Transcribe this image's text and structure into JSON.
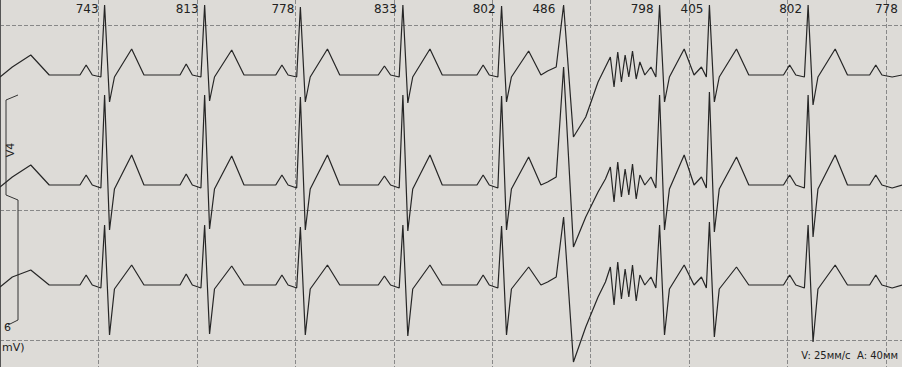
{
  "chart_data": {
    "type": "line",
    "lead": "V4",
    "lead_number": "6",
    "unit": "mV)",
    "footer": "V: 25мм/с  A: 40мм",
    "rr_labels": [
      {
        "x": 850,
        "value": 743
      },
      {
        "x": 1663,
        "value": 813
      },
      {
        "x": 2441,
        "value": 778
      },
      {
        "x": 3274,
        "value": 833
      },
      {
        "x": 4076,
        "value": 802
      },
      {
        "x": 4562,
        "value": 486
      },
      {
        "x": 5360,
        "value": 798
      },
      {
        "x": 5765,
        "value": 405
      },
      {
        "x": 6567,
        "value": 802
      },
      {
        "x": 7345,
        "value": 778
      }
    ],
    "x": [
      0,
      100,
      250,
      400,
      650,
      700,
      750,
      820,
      850,
      890,
      930,
      1070,
      1170,
      1463,
      1513,
      1563,
      1633,
      1663,
      1703,
      1743,
      1883,
      1983,
      2241,
      2291,
      2341,
      2411,
      2441,
      2481,
      2521,
      2661,
      2761,
      3074,
      3124,
      3174,
      3244,
      3274,
      3314,
      3354,
      3494,
      3594,
      3876,
      3926,
      3976,
      4046,
      4076,
      4116,
      4156,
      4296,
      4396,
      4450,
      4520,
      4580,
      4660,
      4760,
      4860,
      4920,
      4960,
      4990,
      5020,
      5050,
      5080,
      5110,
      5140,
      5170,
      5200,
      5240,
      5290,
      5330,
      5360,
      5400,
      5440,
      5560,
      5640,
      5700,
      5740,
      5765,
      5805,
      5845,
      5985,
      6085,
      6367,
      6417,
      6467,
      6537,
      6567,
      6607,
      6647,
      6787,
      6887,
      7067,
      7117,
      7167,
      7250,
      7330
    ],
    "series": [
      {
        "color": "#262626",
        "values": [
          290,
          300,
          312,
          292,
          292,
          302,
          292,
          290,
          362,
          265,
          290,
          318,
          292,
          292,
          303,
          292,
          290,
          362,
          266,
          290,
          317,
          292,
          292,
          302,
          292,
          290,
          360,
          265,
          290,
          318,
          292,
          292,
          301,
          292,
          290,
          362,
          264,
          290,
          318,
          292,
          292,
          302,
          292,
          290,
          361,
          265,
          290,
          316,
          292,
          296,
          300,
          362,
          230,
          250,
          285,
          300,
          310,
          280,
          315,
          285,
          312,
          290,
          316,
          288,
          305,
          292,
          300,
          290,
          362,
          265,
          290,
          318,
          292,
          300,
          290,
          362,
          265,
          290,
          318,
          292,
          292,
          302,
          292,
          290,
          362,
          262,
          290,
          318,
          292,
          292,
          302,
          292,
          290,
          292
        ]
      },
      {
        "color": "#262626",
        "values": [
          180,
          190,
          202,
          182,
          182,
          192,
          182,
          179,
          272,
          137,
          178,
          212,
          182,
          182,
          193,
          182,
          179,
          272,
          138,
          178,
          211,
          182,
          182,
          192,
          182,
          179,
          270,
          137,
          178,
          212,
          182,
          182,
          191,
          182,
          179,
          272,
          136,
          178,
          212,
          182,
          182,
          192,
          182,
          179,
          271,
          137,
          178,
          210,
          182,
          185,
          190,
          300,
          120,
          150,
          175,
          188,
          200,
          165,
          205,
          170,
          198,
          172,
          203,
          168,
          192,
          182,
          190,
          179,
          272,
          137,
          178,
          212,
          182,
          190,
          179,
          275,
          135,
          178,
          210,
          182,
          182,
          192,
          182,
          179,
          272,
          130,
          178,
          212,
          182,
          182,
          192,
          182,
          179,
          182
        ]
      },
      {
        "color": "#262626",
        "values": [
          80,
          90,
          97,
          82,
          82,
          92,
          82,
          79,
          142,
          32,
          78,
          102,
          82,
          82,
          93,
          82,
          79,
          142,
          33,
          78,
          101,
          82,
          82,
          92,
          82,
          79,
          140,
          32,
          78,
          102,
          82,
          82,
          91,
          82,
          79,
          142,
          31,
          78,
          102,
          82,
          82,
          92,
          82,
          79,
          141,
          32,
          78,
          100,
          82,
          85,
          90,
          150,
          5,
          40,
          70,
          85,
          100,
          62,
          105,
          68,
          98,
          70,
          102,
          66,
          92,
          82,
          90,
          79,
          142,
          32,
          78,
          102,
          82,
          90,
          79,
          145,
          30,
          78,
          100,
          82,
          82,
          92,
          82,
          79,
          142,
          25,
          78,
          102,
          82,
          82,
          92,
          82,
          79,
          82
        ]
      }
    ],
    "xlim": [
      0,
      7330
    ],
    "xticks": [
      0,
      800,
      1600,
      2400,
      3200,
      4000,
      4800,
      5600,
      6400,
      7200
    ],
    "ylim": [
      0,
      367
    ],
    "yticks": [
      27,
      157,
      342
    ],
    "grid": true,
    "tick_labels": false
  }
}
